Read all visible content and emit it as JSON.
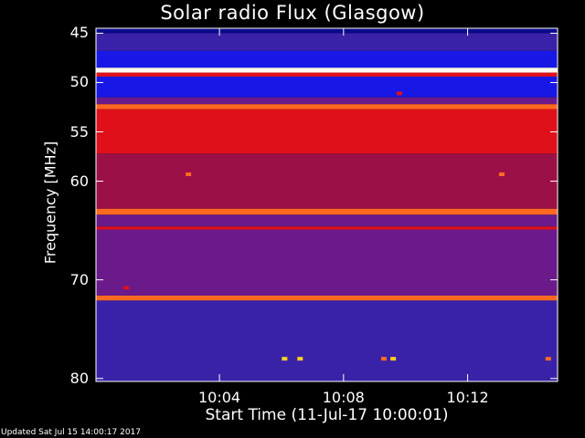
{
  "chart_data": {
    "type": "heatmap",
    "title": "Solar radio Flux (Glasgow)",
    "xlabel": "Start Time (11-Jul-17 10:00:01)",
    "ylabel": "Frequency [MHz]",
    "x_ticks": [
      "10:04",
      "10:08",
      "10:12"
    ],
    "x_tick_minutes": [
      4,
      8,
      12
    ],
    "x_range_minutes": [
      0.02,
      14.9
    ],
    "y_ticks": [
      45,
      50,
      55,
      60,
      70,
      80
    ],
    "y_range_mhz": [
      44.5,
      80.3
    ],
    "bands": [
      {
        "from": 44.5,
        "to": 45.0,
        "level": "deep-blue"
      },
      {
        "from": 45.0,
        "to": 46.8,
        "level": "blue-purple"
      },
      {
        "from": 46.8,
        "to": 48.5,
        "level": "blue"
      },
      {
        "from": 48.5,
        "to": 49.0,
        "level": "white"
      },
      {
        "from": 49.0,
        "to": 49.4,
        "level": "red"
      },
      {
        "from": 49.4,
        "to": 51.5,
        "level": "blue"
      },
      {
        "from": 51.5,
        "to": 52.2,
        "level": "purple"
      },
      {
        "from": 52.2,
        "to": 52.7,
        "level": "orange"
      },
      {
        "from": 52.7,
        "to": 57.2,
        "level": "red"
      },
      {
        "from": 57.2,
        "to": 62.8,
        "level": "dark-red"
      },
      {
        "from": 62.8,
        "to": 63.4,
        "level": "orange"
      },
      {
        "from": 63.4,
        "to": 64.6,
        "level": "purple"
      },
      {
        "from": 64.6,
        "to": 64.9,
        "level": "red"
      },
      {
        "from": 64.9,
        "to": 71.6,
        "level": "purple"
      },
      {
        "from": 71.6,
        "to": 72.1,
        "level": "orange"
      },
      {
        "from": 72.1,
        "to": 80.3,
        "level": "blue-purple"
      }
    ],
    "bursts": [
      {
        "minute": 3.0,
        "mhz": 59.3,
        "level": "orange"
      },
      {
        "minute": 13.1,
        "mhz": 59.3,
        "level": "orange"
      },
      {
        "minute": 9.8,
        "mhz": 51.1,
        "level": "red"
      },
      {
        "minute": 1.0,
        "mhz": 70.8,
        "level": "red"
      },
      {
        "minute": 6.1,
        "mhz": 78.0,
        "level": "yellow"
      },
      {
        "minute": 6.6,
        "mhz": 78.0,
        "level": "yellow"
      },
      {
        "minute": 9.3,
        "mhz": 78.0,
        "level": "orange"
      },
      {
        "minute": 9.6,
        "mhz": 78.0,
        "level": "yellow"
      },
      {
        "minute": 14.6,
        "mhz": 78.0,
        "level": "orange"
      }
    ],
    "colors": {
      "deep-blue": "#0a0a8c",
      "blue": "#1818e6",
      "blue-purple": "#3a22a8",
      "purple": "#6a1a8a",
      "dark-red": "#9c1048",
      "red": "#e0101a",
      "orange": "#ff6a20",
      "yellow": "#ffd020",
      "white": "#fff8f0"
    }
  },
  "footer": {
    "updated": "Updated Sat Jul 15 14:00:17 2017"
  }
}
